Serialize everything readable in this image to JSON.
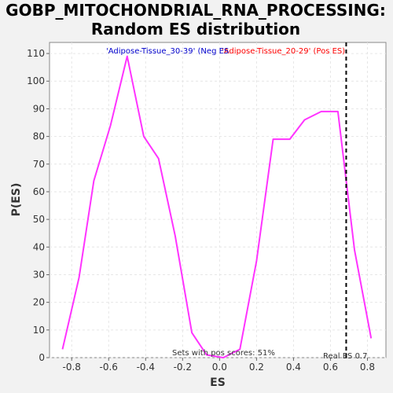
{
  "chart_data": {
    "type": "line",
    "title_line1": "GOBP_MITOCHONDRIAL_RNA_PROCESSING:",
    "title_line2": "Random ES distribution",
    "xlabel": "ES",
    "ylabel": "P(ES)",
    "xlim": [
      -0.92,
      0.9
    ],
    "ylim": [
      0,
      114
    ],
    "x_ticks": [
      -0.8,
      -0.6,
      -0.4,
      -0.2,
      0.0,
      0.2,
      0.4,
      0.6,
      0.8
    ],
    "x_tick_labels": [
      "-0.8",
      "-0.6",
      "-0.4",
      "-0.2",
      "0.0",
      "0.2",
      "0.4",
      "0.6",
      "0.8"
    ],
    "y_ticks": [
      0,
      10,
      20,
      30,
      40,
      50,
      60,
      70,
      80,
      90,
      100,
      110
    ],
    "y_tick_labels": [
      "0",
      "10",
      "20",
      "30",
      "40",
      "50",
      "60",
      "70",
      "80",
      "90",
      "100",
      "110"
    ],
    "grid": true,
    "series": [
      {
        "color": "#ff33ff",
        "x": [
          -0.85,
          -0.76,
          -0.68,
          -0.59,
          -0.5,
          -0.41,
          -0.33,
          -0.24,
          -0.15,
          -0.07,
          0.02,
          0.11,
          0.2,
          0.29,
          0.38,
          0.46,
          0.55,
          0.64,
          0.73,
          0.82
        ],
        "y": [
          3,
          29,
          64,
          84,
          109,
          80,
          72,
          44,
          9,
          1,
          0,
          3,
          35,
          79,
          79,
          86,
          89,
          89,
          39,
          7
        ]
      }
    ],
    "real_es": 0.685,
    "real_es_label": "Real ES 0.7",
    "neg_label": "'Adipose-Tissue_30-39' (Neg ES)",
    "pos_label": "'Adipose-Tissue_20-29' (Pos ES)",
    "neg_color": "#0000cc",
    "pos_color": "#ff0000",
    "pos_scores_note": "Sets with pos scores: 51%"
  }
}
